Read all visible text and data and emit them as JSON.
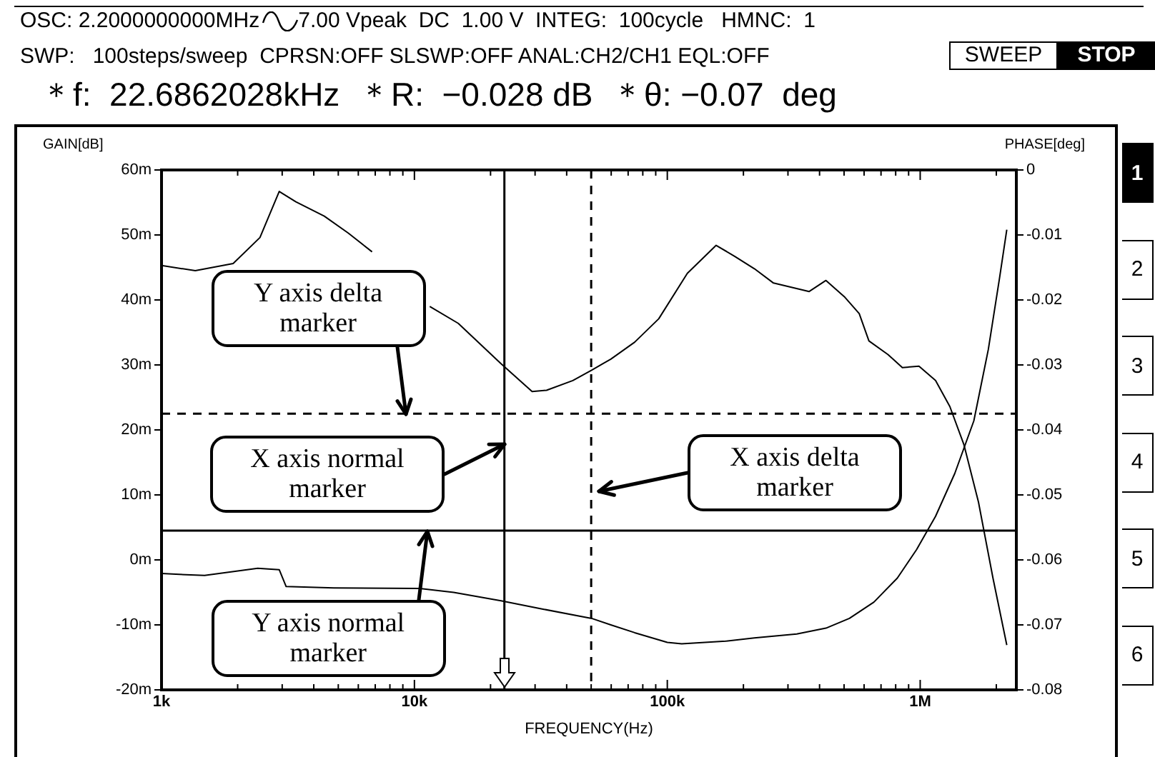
{
  "chart_data": {
    "type": "line",
    "xlabel": "FREQUENCY(Hz)",
    "ylabel": "GAIN[dB]",
    "y2label": "PHASE[deg]",
    "log": "x",
    "grid": false,
    "legend": false,
    "marker": "none",
    "line_style": "solid",
    "xlim": [
      1000,
      2400000
    ],
    "xticks": [
      {
        "value": 1000,
        "label": "1k"
      },
      {
        "value": 2000,
        "label": null
      },
      {
        "value": 3000,
        "label": null
      },
      {
        "value": 4000,
        "label": null
      },
      {
        "value": 5000,
        "label": null
      },
      {
        "value": 6000,
        "label": null
      },
      {
        "value": 7000,
        "label": null
      },
      {
        "value": 8000,
        "label": null
      },
      {
        "value": 9000,
        "label": null
      },
      {
        "value": 10000,
        "label": "10k"
      },
      {
        "value": 20000,
        "label": null
      },
      {
        "value": 30000,
        "label": null
      },
      {
        "value": 40000,
        "label": null
      },
      {
        "value": 50000,
        "label": null
      },
      {
        "value": 60000,
        "label": null
      },
      {
        "value": 70000,
        "label": null
      },
      {
        "value": 80000,
        "label": null
      },
      {
        "value": 90000,
        "label": null
      },
      {
        "value": 100000,
        "label": "100k"
      },
      {
        "value": 200000,
        "label": null
      },
      {
        "value": 300000,
        "label": null
      },
      {
        "value": 400000,
        "label": null
      },
      {
        "value": 500000,
        "label": null
      },
      {
        "value": 600000,
        "label": null
      },
      {
        "value": 700000,
        "label": null
      },
      {
        "value": 800000,
        "label": null
      },
      {
        "value": 900000,
        "label": null
      },
      {
        "value": 1000000,
        "label": "1M"
      },
      {
        "value": 2000000,
        "label": null
      }
    ],
    "ylim": [
      -20,
      60
    ],
    "yticks": [
      {
        "value": -20,
        "label": "-20m"
      },
      {
        "value": -10,
        "label": "-10m"
      },
      {
        "value": 0,
        "label": "0m"
      },
      {
        "value": 10,
        "label": "10m"
      },
      {
        "value": 20,
        "label": "20m"
      },
      {
        "value": 30,
        "label": "30m"
      },
      {
        "value": 40,
        "label": "40m"
      },
      {
        "value": 50,
        "label": "50m"
      },
      {
        "value": 60,
        "label": "60m"
      }
    ],
    "y2lim": [
      -0.08,
      0
    ],
    "y2ticks": [
      -0.08,
      -0.07,
      -0.06,
      -0.05,
      -0.04,
      -0.03,
      -0.02,
      -0.01,
      0
    ],
    "series": [
      {
        "color": "#000000",
        "x": [
          1000,
          1360,
          1920,
          2450,
          2920,
          3400,
          4400,
          5470,
          6800,
          8100,
          11500,
          14900,
          22000,
          29200,
          33300,
          42300,
          50200,
          59800,
          74300,
          92500,
          120000,
          156000,
          185000,
          221000,
          263000,
          364000,
          424000,
          504000,
          574000,
          627000,
          746000,
          850000,
          989000,
          1150000,
          1310000,
          1490000,
          1700000,
          1940000,
          2200000
        ],
        "values": [
          45.3,
          44.5,
          45.6,
          49.6,
          56.7,
          55.1,
          52.9,
          50.3,
          47.4,
          null,
          39,
          36.4,
          30.2,
          25.9,
          26.1,
          27.6,
          29.2,
          30.9,
          33.5,
          37.1,
          44.1,
          48.4,
          46.7,
          44.8,
          42.6,
          41.3,
          43,
          40.4,
          37.9,
          33.7,
          31.6,
          29.6,
          29.8,
          27.6,
          23.6,
          17.7,
          8.9,
          -2.8,
          -13.1
        ]
      },
      {
        "color": "#000000",
        "axis": "y2",
        "x": [
          1000,
          1480,
          2400,
          2920,
          3110,
          4800,
          10500,
          14300,
          22000,
          32500,
          50200,
          59800,
          74300,
          100000,
          114000,
          170000,
          221000,
          325000,
          424000,
          525000,
          656000,
          812000,
          968000,
          1150000,
          1370000,
          1630000,
          1860000,
          2060000,
          2200000
        ],
        "values": [
          -0.0621,
          -0.0624,
          -0.0613,
          -0.0615,
          -0.0641,
          -0.0643,
          -0.0644,
          -0.065,
          -0.0663,
          -0.0676,
          -0.069,
          -0.07,
          -0.0712,
          -0.0727,
          -0.0729,
          -0.0725,
          -0.072,
          -0.0714,
          -0.0705,
          -0.069,
          -0.0665,
          -0.0628,
          -0.0584,
          -0.0533,
          -0.0467,
          -0.0386,
          -0.0276,
          -0.0166,
          -0.0092
        ]
      }
    ],
    "ref_lines": [
      {
        "axis": "x",
        "value": 22686.2028,
        "color": "#000000",
        "line_style": "solid"
      },
      {
        "axis": "x",
        "value": 50000,
        "color": "#000000",
        "line_style": "dashed"
      },
      {
        "axis": "y",
        "value": 22.5,
        "color": "#000000",
        "line_style": "dashed"
      },
      {
        "axis": "y",
        "value": 4.5,
        "color": "#000000",
        "line_style": "solid"
      }
    ],
    "annotations": [
      "OSC: 2.2000000000MHz",
      "7.00 Vpeak  DC  1.00 V  INTEG:  100cycle   HMNC:  1",
      "SWP:   100steps/sweep  CPRSN:OFF SLSWP:OFF ANAL:CH2/CH1 EQL:OFF",
      "SWEEP",
      "STOP",
      "＊f:  22.6862028kHz  ＊R:  −0.028 dB  ＊θ: −0.07  deg",
      "1",
      "2",
      "3",
      "4",
      "5",
      "6",
      {
        "text": "Y axis delta marker",
        "x": 9200,
        "y": 22.5
      },
      "X axis normal marker",
      {
        "text": "Y axis normal marker",
        "x": 11200,
        "y": 4.5
      },
      "X axis delta marker"
    ]
  }
}
